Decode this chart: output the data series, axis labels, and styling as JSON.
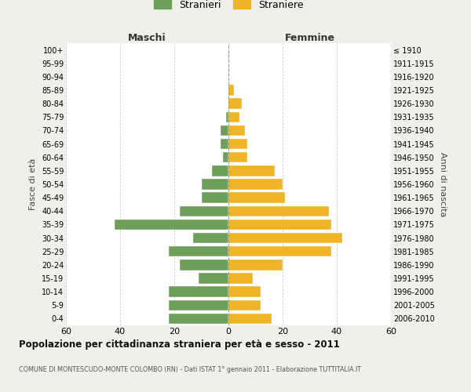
{
  "age_groups": [
    "0-4",
    "5-9",
    "10-14",
    "15-19",
    "20-24",
    "25-29",
    "30-34",
    "35-39",
    "40-44",
    "45-49",
    "50-54",
    "55-59",
    "60-64",
    "65-69",
    "70-74",
    "75-79",
    "80-84",
    "85-89",
    "90-94",
    "95-99",
    "100+"
  ],
  "birth_years": [
    "2006-2010",
    "2001-2005",
    "1996-2000",
    "1991-1995",
    "1986-1990",
    "1981-1985",
    "1976-1980",
    "1971-1975",
    "1966-1970",
    "1961-1965",
    "1956-1960",
    "1951-1955",
    "1946-1950",
    "1941-1945",
    "1936-1940",
    "1931-1935",
    "1926-1930",
    "1921-1925",
    "1916-1920",
    "1911-1915",
    "≤ 1910"
  ],
  "maschi": [
    22,
    22,
    22,
    11,
    18,
    22,
    13,
    42,
    18,
    10,
    10,
    6,
    2,
    3,
    3,
    1,
    0,
    0,
    0,
    0,
    0
  ],
  "femmine": [
    16,
    12,
    12,
    9,
    20,
    38,
    42,
    38,
    37,
    21,
    20,
    17,
    7,
    7,
    6,
    4,
    5,
    2,
    0,
    0,
    0
  ],
  "maschi_color": "#6d9e5a",
  "femmine_color": "#f0b429",
  "background_color": "#f0f0eb",
  "bar_background": "#ffffff",
  "title": "Popolazione per cittadinanza straniera per età e sesso - 2011",
  "subtitle": "COMUNE DI MONTESCUDO-MONTE COLOMBO (RN) - Dati ISTAT 1° gennaio 2011 - Elaborazione TUTTITALIA.IT",
  "ylabel_left": "Fasce di età",
  "ylabel_right": "Anni di nascita",
  "xlabel_maschi": "Maschi",
  "xlabel_femmine": "Femmine",
  "legend_stranieri": "Stranieri",
  "legend_straniere": "Straniere",
  "xlim": 60,
  "grid_color": "#cccccc"
}
